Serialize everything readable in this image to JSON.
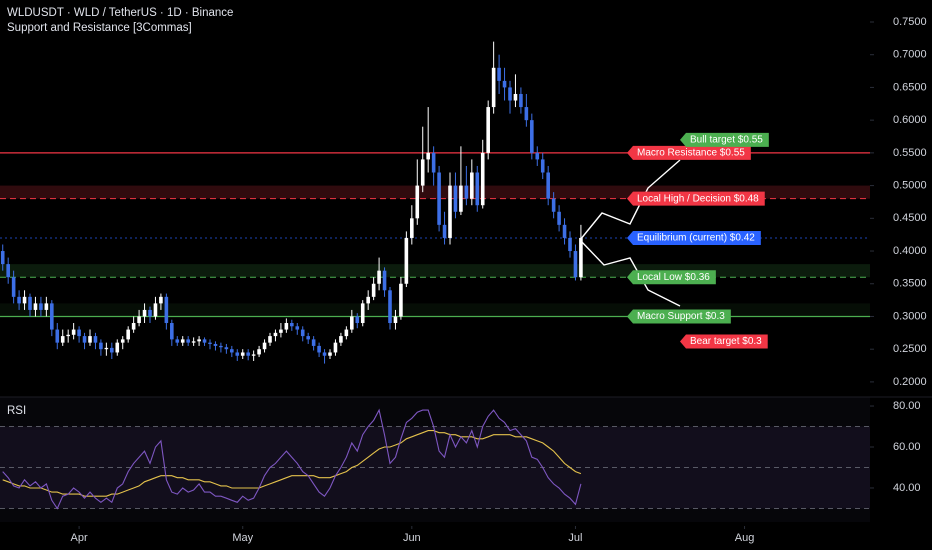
{
  "header": {
    "symbol": "WLDUSDT · WLD / TetherUS · 1D · Binance",
    "indicator": "Support and Resistance [3Commas]"
  },
  "chart_data": [
    {
      "type": "candlestick",
      "up_color": "#ffffff",
      "down_color": "#3d6fe6",
      "xlim": [
        -0.5,
        159
      ],
      "ylim": [
        0.18,
        0.7836
      ],
      "xticks": [
        {
          "value": 14,
          "label": "Apr"
        },
        {
          "value": 44,
          "label": "May"
        },
        {
          "value": 75,
          "label": "Jun"
        },
        {
          "value": 105,
          "label": "Jul"
        },
        {
          "value": 136,
          "label": "Aug"
        }
      ],
      "yticks": [
        {
          "value": 0.2,
          "label": "0.2000"
        },
        {
          "value": 0.25,
          "label": "0.2500"
        },
        {
          "value": 0.3,
          "label": "0.3000"
        },
        {
          "value": 0.35,
          "label": "0.3500"
        },
        {
          "value": 0.4,
          "label": "0.4000"
        },
        {
          "value": 0.45,
          "label": "0.4500"
        },
        {
          "value": 0.5,
          "label": "0.5000"
        },
        {
          "value": 0.55,
          "label": "0.5500"
        },
        {
          "value": 0.6,
          "label": "0.6000"
        },
        {
          "value": 0.65,
          "label": "0.6500"
        },
        {
          "value": 0.7,
          "label": "0.7000"
        },
        {
          "value": 0.75,
          "label": "0.7500"
        }
      ],
      "ohlc": [
        [
          0.4,
          0.41,
          0.37,
          0.38
        ],
        [
          0.38,
          0.39,
          0.35,
          0.36
        ],
        [
          0.36,
          0.37,
          0.32,
          0.33
        ],
        [
          0.33,
          0.34,
          0.31,
          0.32
        ],
        [
          0.32,
          0.34,
          0.31,
          0.33
        ],
        [
          0.33,
          0.335,
          0.3,
          0.31
        ],
        [
          0.31,
          0.33,
          0.3,
          0.32
        ],
        [
          0.32,
          0.33,
          0.3,
          0.31
        ],
        [
          0.31,
          0.33,
          0.3,
          0.32
        ],
        [
          0.32,
          0.325,
          0.27,
          0.28
        ],
        [
          0.28,
          0.29,
          0.25,
          0.26
        ],
        [
          0.26,
          0.28,
          0.255,
          0.27
        ],
        [
          0.27,
          0.28,
          0.26,
          0.272
        ],
        [
          0.272,
          0.29,
          0.265,
          0.28
        ],
        [
          0.28,
          0.285,
          0.26,
          0.27
        ],
        [
          0.27,
          0.275,
          0.25,
          0.26
        ],
        [
          0.26,
          0.28,
          0.255,
          0.27
        ],
        [
          0.27,
          0.275,
          0.25,
          0.26
        ],
        [
          0.26,
          0.265,
          0.24,
          0.25
        ],
        [
          0.25,
          0.26,
          0.24,
          0.252
        ],
        [
          0.252,
          0.26,
          0.235,
          0.245
        ],
        [
          0.245,
          0.265,
          0.24,
          0.26
        ],
        [
          0.26,
          0.27,
          0.25,
          0.265
        ],
        [
          0.265,
          0.285,
          0.26,
          0.28
        ],
        [
          0.28,
          0.3,
          0.275,
          0.29
        ],
        [
          0.29,
          0.31,
          0.285,
          0.3
        ],
        [
          0.3,
          0.32,
          0.29,
          0.31
        ],
        [
          0.31,
          0.315,
          0.29,
          0.3
        ],
        [
          0.3,
          0.33,
          0.295,
          0.32
        ],
        [
          0.32,
          0.335,
          0.31,
          0.33
        ],
        [
          0.33,
          0.335,
          0.28,
          0.29
        ],
        [
          0.29,
          0.295,
          0.255,
          0.265
        ],
        [
          0.265,
          0.27,
          0.255,
          0.26
        ],
        [
          0.26,
          0.27,
          0.255,
          0.265
        ],
        [
          0.265,
          0.27,
          0.255,
          0.26
        ],
        [
          0.26,
          0.268,
          0.255,
          0.262
        ],
        [
          0.262,
          0.27,
          0.255,
          0.265
        ],
        [
          0.265,
          0.268,
          0.255,
          0.26
        ],
        [
          0.26,
          0.265,
          0.25,
          0.258
        ],
        [
          0.258,
          0.262,
          0.248,
          0.255
        ],
        [
          0.255,
          0.26,
          0.245,
          0.253
        ],
        [
          0.253,
          0.258,
          0.243,
          0.25
        ],
        [
          0.25,
          0.255,
          0.238,
          0.245
        ],
        [
          0.245,
          0.25,
          0.232,
          0.24
        ],
        [
          0.24,
          0.25,
          0.235,
          0.245
        ],
        [
          0.245,
          0.25,
          0.233,
          0.24
        ],
        [
          0.24,
          0.248,
          0.232,
          0.242
        ],
        [
          0.242,
          0.255,
          0.238,
          0.25
        ],
        [
          0.25,
          0.265,
          0.245,
          0.26
        ],
        [
          0.26,
          0.275,
          0.255,
          0.27
        ],
        [
          0.27,
          0.28,
          0.262,
          0.275
        ],
        [
          0.275,
          0.29,
          0.268,
          0.28
        ],
        [
          0.28,
          0.297,
          0.275,
          0.29
        ],
        [
          0.29,
          0.295,
          0.278,
          0.285
        ],
        [
          0.285,
          0.29,
          0.272,
          0.28
        ],
        [
          0.28,
          0.285,
          0.262,
          0.27
        ],
        [
          0.27,
          0.275,
          0.258,
          0.265
        ],
        [
          0.265,
          0.27,
          0.248,
          0.255
        ],
        [
          0.255,
          0.26,
          0.238,
          0.245
        ],
        [
          0.245,
          0.25,
          0.228,
          0.24
        ],
        [
          0.24,
          0.25,
          0.235,
          0.245
        ],
        [
          0.245,
          0.265,
          0.24,
          0.26
        ],
        [
          0.26,
          0.275,
          0.255,
          0.27
        ],
        [
          0.27,
          0.285,
          0.265,
          0.28
        ],
        [
          0.28,
          0.31,
          0.275,
          0.3
        ],
        [
          0.3,
          0.305,
          0.282,
          0.29
        ],
        [
          0.29,
          0.325,
          0.285,
          0.32
        ],
        [
          0.32,
          0.34,
          0.31,
          0.33
        ],
        [
          0.33,
          0.36,
          0.325,
          0.35
        ],
        [
          0.35,
          0.39,
          0.34,
          0.37
        ],
        [
          0.37,
          0.375,
          0.33,
          0.34
        ],
        [
          0.34,
          0.345,
          0.28,
          0.29
        ],
        [
          0.29,
          0.31,
          0.28,
          0.3
        ],
        [
          0.3,
          0.36,
          0.295,
          0.35
        ],
        [
          0.35,
          0.43,
          0.345,
          0.42
        ],
        [
          0.42,
          0.47,
          0.41,
          0.45
        ],
        [
          0.45,
          0.54,
          0.44,
          0.5
        ],
        [
          0.5,
          0.59,
          0.49,
          0.54
        ],
        [
          0.54,
          0.62,
          0.52,
          0.55
        ],
        [
          0.55,
          0.56,
          0.5,
          0.52
        ],
        [
          0.52,
          0.53,
          0.43,
          0.44
        ],
        [
          0.44,
          0.46,
          0.41,
          0.42
        ],
        [
          0.42,
          0.52,
          0.41,
          0.5
        ],
        [
          0.5,
          0.52,
          0.45,
          0.46
        ],
        [
          0.46,
          0.56,
          0.455,
          0.5
        ],
        [
          0.5,
          0.53,
          0.47,
          0.48
        ],
        [
          0.48,
          0.54,
          0.47,
          0.52
        ],
        [
          0.52,
          0.53,
          0.46,
          0.47
        ],
        [
          0.47,
          0.57,
          0.465,
          0.55
        ],
        [
          0.55,
          0.63,
          0.54,
          0.62
        ],
        [
          0.62,
          0.72,
          0.61,
          0.68
        ],
        [
          0.68,
          0.7,
          0.64,
          0.66
        ],
        [
          0.66,
          0.68,
          0.63,
          0.65
        ],
        [
          0.65,
          0.66,
          0.61,
          0.63
        ],
        [
          0.63,
          0.67,
          0.62,
          0.64
        ],
        [
          0.64,
          0.65,
          0.61,
          0.62
        ],
        [
          0.62,
          0.64,
          0.59,
          0.6
        ],
        [
          0.6,
          0.61,
          0.54,
          0.55
        ],
        [
          0.55,
          0.56,
          0.53,
          0.54
        ],
        [
          0.54,
          0.55,
          0.51,
          0.52
        ],
        [
          0.52,
          0.53,
          0.47,
          0.48
        ],
        [
          0.48,
          0.49,
          0.45,
          0.46
        ],
        [
          0.46,
          0.47,
          0.43,
          0.44
        ],
        [
          0.44,
          0.45,
          0.41,
          0.42
        ],
        [
          0.42,
          0.43,
          0.39,
          0.4
        ],
        [
          0.4,
          0.41,
          0.355,
          0.36
        ],
        [
          0.36,
          0.44,
          0.355,
          0.42
        ]
      ],
      "zones": [
        {
          "range": [
            0.48,
            0.5
          ],
          "color": "rgba(242,54,69,0.2)"
        },
        {
          "range": [
            0.36,
            0.38
          ],
          "color": "rgba(76,175,80,0.16)"
        },
        {
          "range": [
            0.3,
            0.32
          ],
          "color": "rgba(76,175,80,0.08)"
        }
      ],
      "levels": [
        {
          "label": "Macro Resistance $0.55",
          "value": 0.55,
          "color": "#f23645",
          "line": "solid"
        },
        {
          "label": "Local High / Decision $0.48",
          "value": 0.48,
          "color": "#f23645",
          "line": "dashed"
        },
        {
          "label": "Equilibrium (current) $0.42",
          "value": 0.42,
          "color": "#2962ff",
          "line": "dotted"
        },
        {
          "label": "Local Low $0.36",
          "value": 0.36,
          "color": "#4caf50",
          "line": "dashed"
        },
        {
          "label": "Macro Support $0.3",
          "value": 0.3,
          "color": "#4caf50",
          "line": "solid"
        }
      ],
      "targets": [
        {
          "label": "Bull target $0.55",
          "value": 0.55,
          "color": "#4caf50",
          "side": "above"
        },
        {
          "label": "Bear target $0.3",
          "value": 0.3,
          "color": "#f23645",
          "side": "below"
        }
      ]
    },
    {
      "type": "rsi",
      "title": "RSI",
      "xlim": [
        -0.5,
        159
      ],
      "ylim": [
        23.4,
        84.4
      ],
      "yticks": [
        {
          "value": 40,
          "label": "40.00"
        },
        {
          "value": 60,
          "label": "60.00"
        },
        {
          "value": 80,
          "label": "80.00"
        }
      ],
      "levels": [
        70,
        50,
        30
      ],
      "rsi": {
        "color": "#7e57c2",
        "values": [
          48,
          45,
          41,
          40,
          44,
          41,
          43,
          40,
          42,
          34,
          30,
          36,
          37,
          40,
          38,
          35,
          38,
          35,
          33,
          35,
          33,
          40,
          42,
          48,
          52,
          55,
          58,
          52,
          60,
          63,
          44,
          38,
          37,
          40,
          38,
          39,
          42,
          38,
          38,
          36,
          36,
          35,
          34,
          33,
          36,
          34,
          35,
          40,
          46,
          50,
          52,
          55,
          58,
          55,
          52,
          48,
          46,
          42,
          38,
          36,
          40,
          46,
          50,
          55,
          62,
          58,
          66,
          70,
          73,
          78,
          66,
          52,
          55,
          64,
          72,
          74,
          77,
          78,
          78,
          70,
          58,
          55,
          66,
          60,
          65,
          62,
          68,
          60,
          70,
          75,
          78,
          74,
          72,
          68,
          69,
          66,
          63,
          55,
          54,
          50,
          45,
          42,
          40,
          37,
          35,
          32,
          42
        ]
      },
      "ma": {
        "color": "#e3c14c",
        "values": [
          44,
          43,
          42,
          41,
          41,
          40,
          40,
          40,
          39,
          38,
          38,
          37,
          37,
          37,
          37,
          36,
          36,
          36,
          36,
          36,
          37,
          37,
          38,
          39,
          40,
          41,
          43,
          44,
          45,
          46,
          46,
          46,
          45,
          45,
          44,
          44,
          44,
          43,
          43,
          42,
          41,
          41,
          40,
          40,
          40,
          40,
          40,
          40,
          41,
          42,
          43,
          44,
          45,
          46,
          46,
          46,
          46,
          46,
          45,
          45,
          45,
          46,
          47,
          48,
          50,
          51,
          53,
          55,
          57,
          59,
          60,
          60,
          61,
          62,
          64,
          65,
          66,
          67,
          68,
          68,
          67,
          67,
          66,
          66,
          65,
          65,
          65,
          64,
          64,
          65,
          66,
          66,
          66,
          66,
          65,
          65,
          65,
          64,
          63,
          62,
          60,
          58,
          55,
          52,
          50,
          48,
          47
        ]
      }
    }
  ]
}
